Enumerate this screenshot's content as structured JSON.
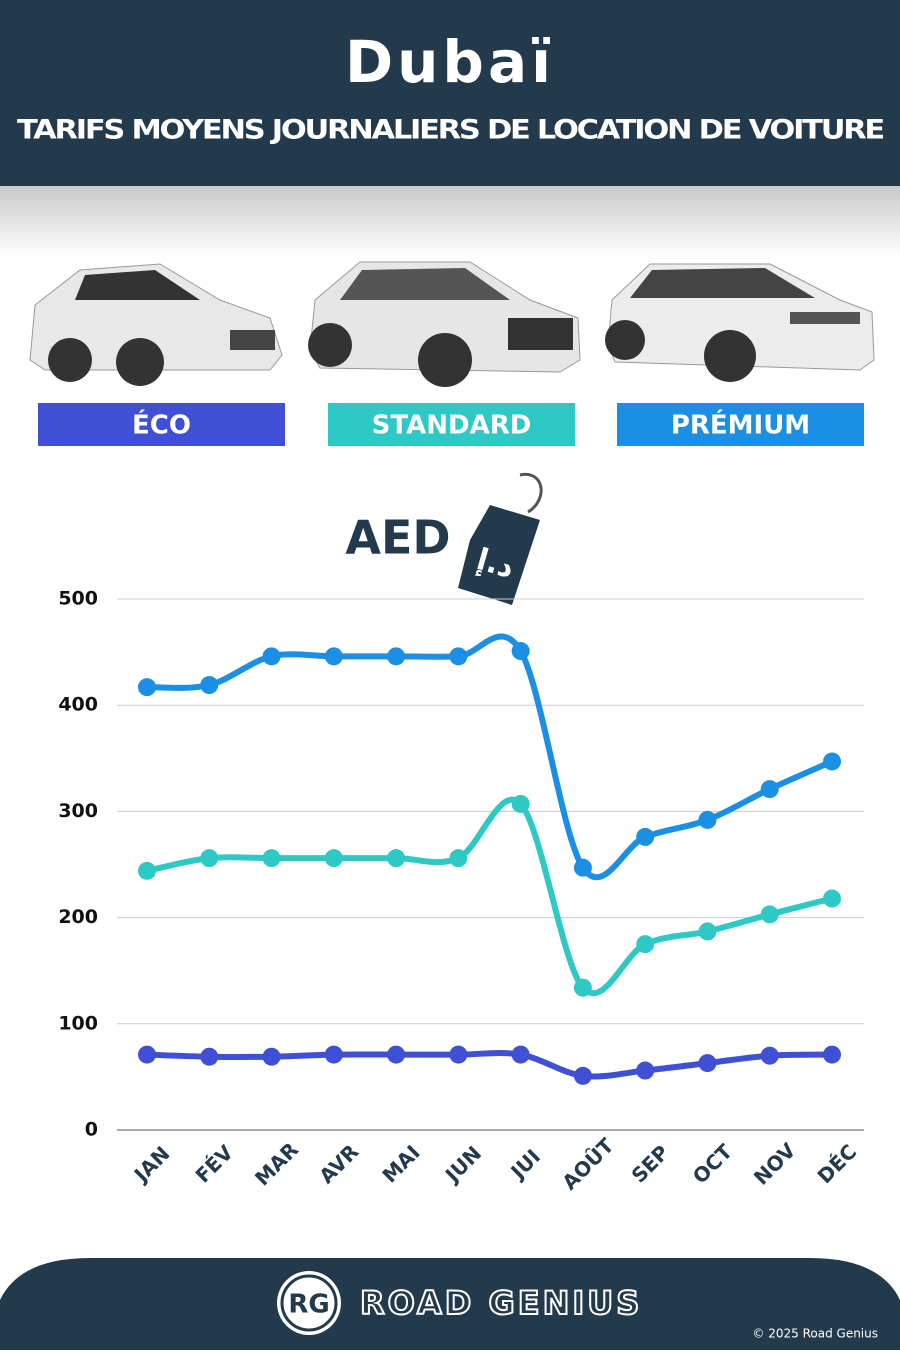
{
  "chart_data": {
    "type": "line",
    "title": "Dubaï",
    "subtitle": "TARIFS MOYENS JOURNALIERS DE LOCATION DE VOITURE",
    "y_label": "AED",
    "tag_text": "د.إ",
    "brand": "ROAD GENIUS",
    "brand_logo": "RG",
    "copyright": "© 2025 Road Genius",
    "categories": [
      "JAN",
      "FÉV",
      "MAR",
      "AVR",
      "MAI",
      "JUN",
      "JUI",
      "AOÛT",
      "SEP",
      "OCT",
      "NOV",
      "DÉC"
    ],
    "series": [
      {
        "name": "ÉCO",
        "color": "#3f4fd6",
        "values": [
          71,
          69,
          69,
          71,
          71,
          71,
          71,
          51,
          56,
          63,
          70,
          71
        ]
      },
      {
        "name": "STANDARD",
        "color": "#2ec9c4",
        "values": [
          244,
          256,
          256,
          256,
          256,
          256,
          307,
          134,
          175,
          187,
          203,
          218
        ]
      },
      {
        "name": "PRÉMIUM",
        "color": "#1a8fe3",
        "values": [
          417,
          419,
          446,
          446,
          446,
          446,
          451,
          247,
          276,
          292,
          321,
          347
        ]
      }
    ],
    "ylim": [
      0,
      500
    ],
    "yticks": [
      0,
      100,
      200,
      300,
      400,
      500
    ],
    "grid": true
  }
}
